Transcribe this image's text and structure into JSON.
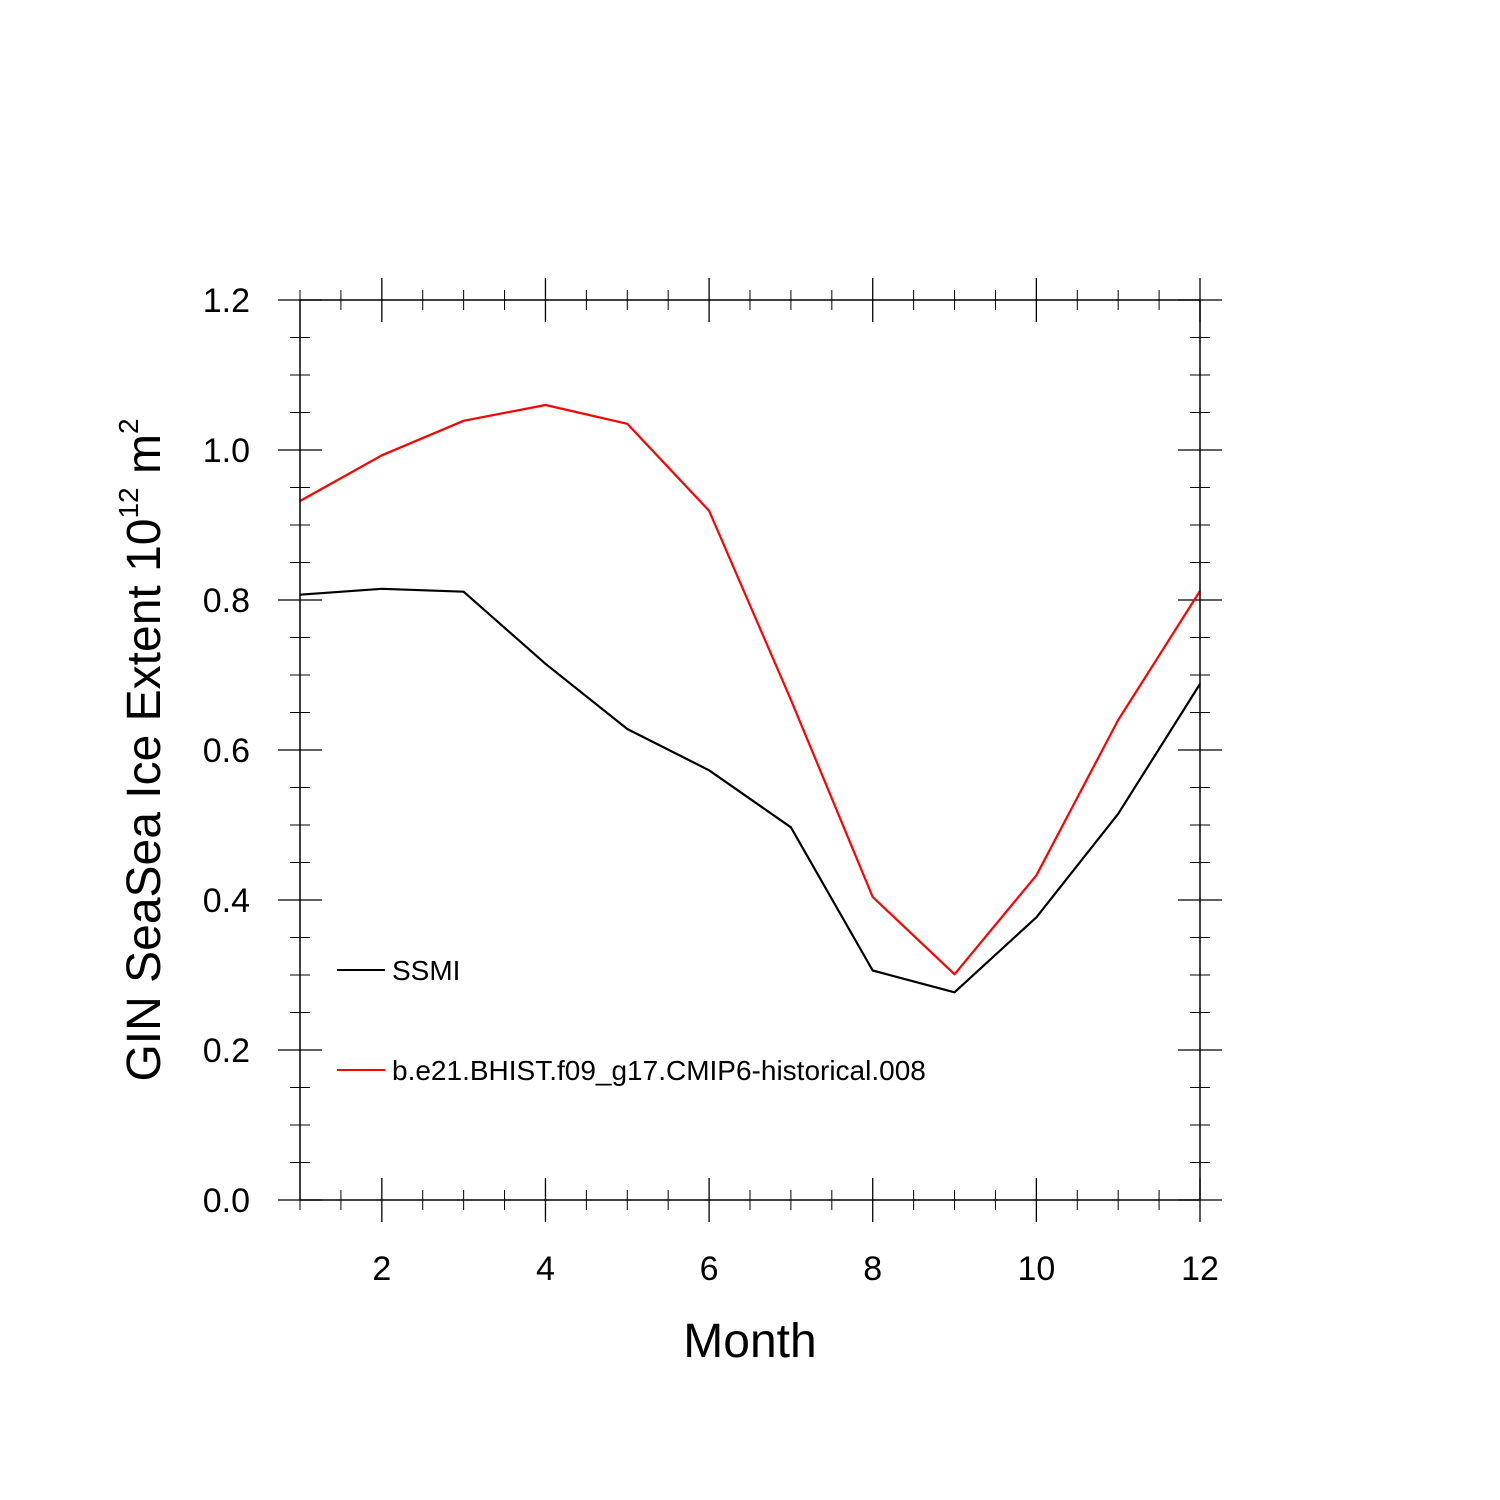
{
  "chart_data": {
    "type": "line",
    "xlabel": "Month",
    "ylabel_prefix": "GIN SeaSea Ice Extent 10",
    "ylabel_exp1": "12",
    "ylabel_unit": " m",
    "ylabel_exp2": "2",
    "xlim": [
      1,
      12
    ],
    "ylim": [
      0,
      1.2
    ],
    "xticks": [
      2,
      4,
      6,
      8,
      10,
      12
    ],
    "yticks": [
      0.0,
      0.2,
      0.4,
      0.6,
      0.8,
      1.0,
      1.2
    ],
    "ytick_labels": [
      "0.0",
      "0.2",
      "0.4",
      "0.6",
      "0.8",
      "1.0",
      "1.2"
    ],
    "xtick_labels": [
      "2",
      "4",
      "6",
      "8",
      "10",
      "12"
    ],
    "grid": false,
    "legend_position": "bottom-left",
    "x": [
      1,
      2,
      3,
      4,
      5,
      6,
      7,
      8,
      9,
      10,
      11,
      12
    ],
    "series": [
      {
        "name": "SSMI",
        "color": "#000000",
        "values": [
          0.807,
          0.815,
          0.811,
          0.715,
          0.628,
          0.573,
          0.497,
          0.306,
          0.277,
          0.377,
          0.515,
          0.688
        ]
      },
      {
        "name": "b.e21.BHIST.f09_g17.CMIP6-historical.008",
        "color": "#ff0000",
        "values": [
          0.932,
          0.993,
          1.039,
          1.06,
          1.035,
          0.919,
          0.667,
          0.404,
          0.301,
          0.433,
          0.64,
          0.812
        ]
      }
    ]
  }
}
